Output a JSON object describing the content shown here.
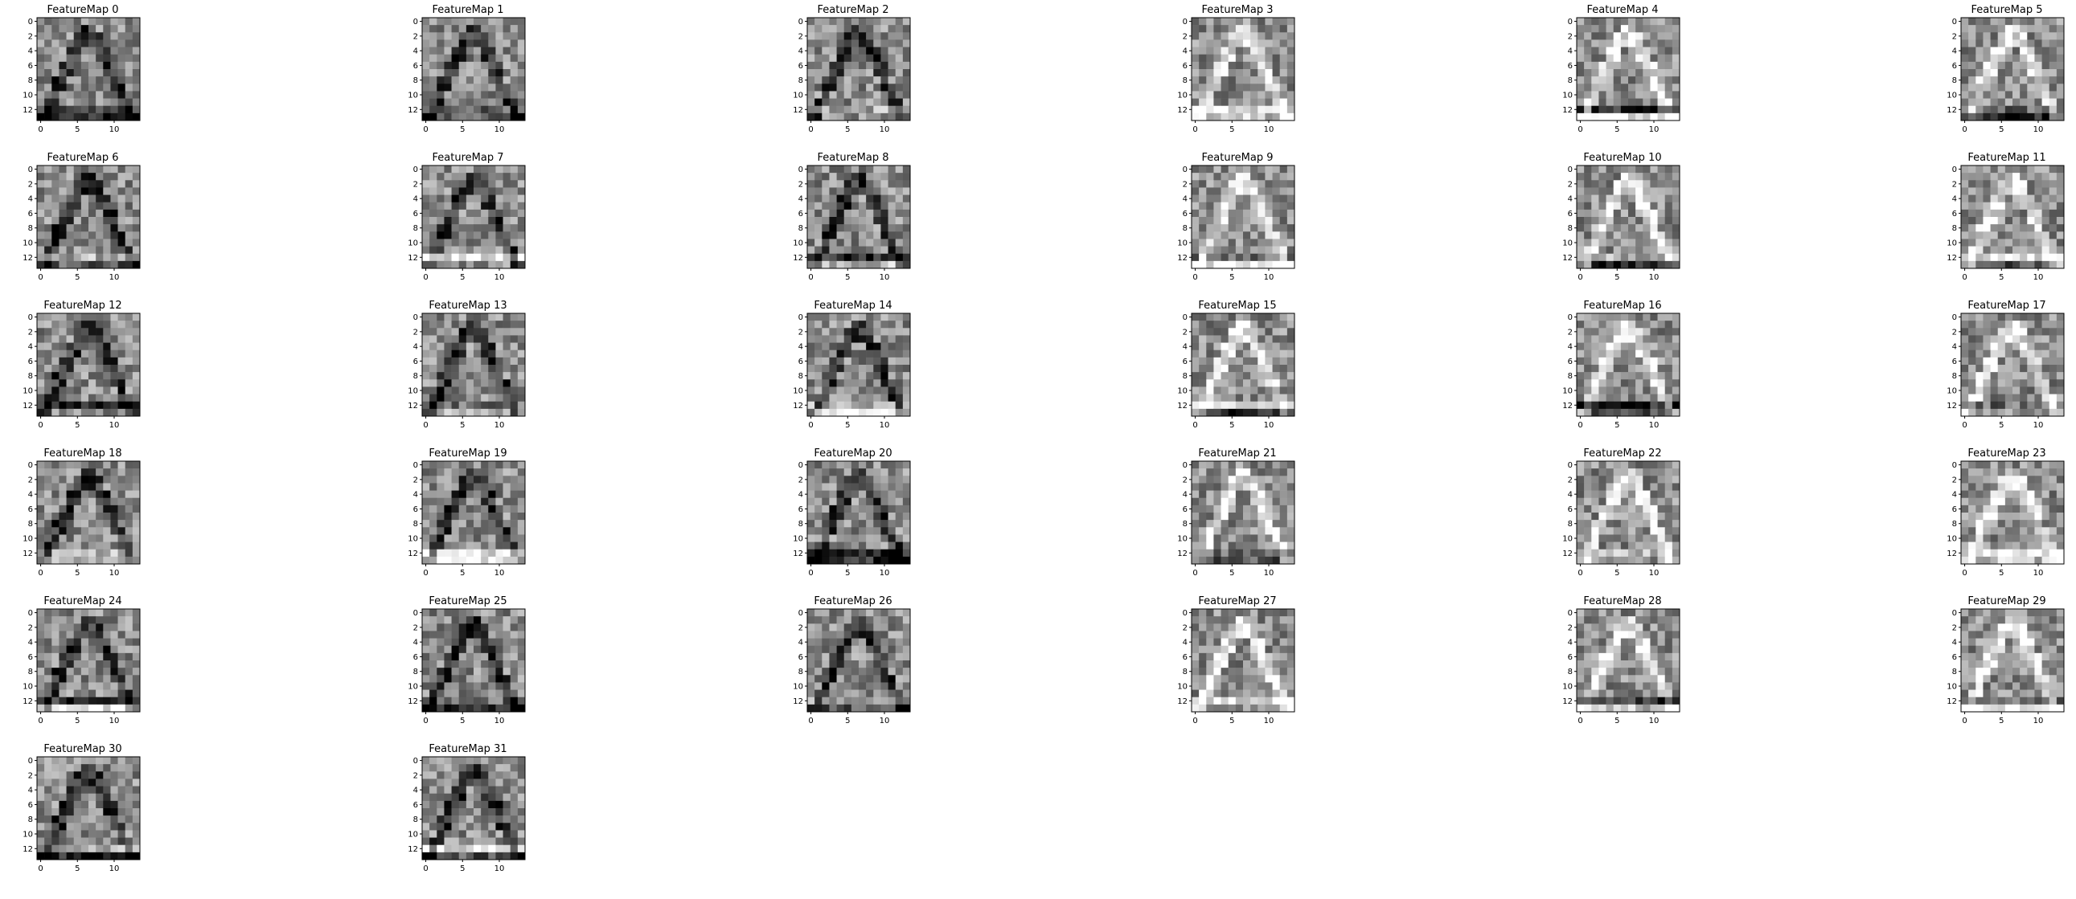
{
  "figure": {
    "background": "#ffffff"
  },
  "chart_data": [
    {
      "type": "heatmap",
      "title": "FeatureMap 0",
      "colormap": "gray",
      "grid_size": 14,
      "xticks": [
        "0",
        "5",
        "10"
      ],
      "yticks": [
        "0",
        "2",
        "4",
        "6",
        "8",
        "10",
        "12"
      ],
      "xlim": [
        0,
        13
      ],
      "ylim": [
        13,
        0
      ]
    },
    {
      "type": "heatmap",
      "title": "FeatureMap 1",
      "colormap": "gray",
      "grid_size": 14,
      "xticks": [
        "0",
        "5",
        "10"
      ],
      "yticks": [
        "0",
        "2",
        "4",
        "6",
        "8",
        "10",
        "12"
      ],
      "xlim": [
        0,
        13
      ],
      "ylim": [
        13,
        0
      ]
    },
    {
      "type": "heatmap",
      "title": "FeatureMap 2",
      "colormap": "gray",
      "grid_size": 14,
      "xticks": [
        "0",
        "5",
        "10"
      ],
      "yticks": [
        "0",
        "2",
        "4",
        "6",
        "8",
        "10",
        "12"
      ],
      "xlim": [
        0,
        13
      ],
      "ylim": [
        13,
        0
      ]
    },
    {
      "type": "heatmap",
      "title": "FeatureMap 3",
      "colormap": "gray",
      "grid_size": 14,
      "xticks": [
        "0",
        "5",
        "10"
      ],
      "yticks": [
        "0",
        "2",
        "4",
        "6",
        "8",
        "10",
        "12"
      ],
      "xlim": [
        0,
        13
      ],
      "ylim": [
        13,
        0
      ]
    },
    {
      "type": "heatmap",
      "title": "FeatureMap 4",
      "colormap": "gray",
      "grid_size": 14,
      "xticks": [
        "0",
        "5",
        "10"
      ],
      "yticks": [
        "0",
        "2",
        "4",
        "6",
        "8",
        "10",
        "12"
      ],
      "xlim": [
        0,
        13
      ],
      "ylim": [
        13,
        0
      ]
    },
    {
      "type": "heatmap",
      "title": "FeatureMap 5",
      "colormap": "gray",
      "grid_size": 14,
      "xticks": [
        "0",
        "5",
        "10"
      ],
      "yticks": [
        "0",
        "2",
        "4",
        "6",
        "8",
        "10",
        "12"
      ],
      "xlim": [
        0,
        13
      ],
      "ylim": [
        13,
        0
      ]
    },
    {
      "type": "heatmap",
      "title": "FeatureMap 6",
      "colormap": "gray",
      "grid_size": 14,
      "xticks": [
        "0",
        "5",
        "10"
      ],
      "yticks": [
        "0",
        "2",
        "4",
        "6",
        "8",
        "10",
        "12"
      ],
      "xlim": [
        0,
        13
      ],
      "ylim": [
        13,
        0
      ]
    },
    {
      "type": "heatmap",
      "title": "FeatureMap 7",
      "colormap": "gray",
      "grid_size": 14,
      "xticks": [
        "0",
        "5",
        "10"
      ],
      "yticks": [
        "0",
        "2",
        "4",
        "6",
        "8",
        "10",
        "12"
      ],
      "xlim": [
        0,
        13
      ],
      "ylim": [
        13,
        0
      ]
    },
    {
      "type": "heatmap",
      "title": "FeatureMap 8",
      "colormap": "gray",
      "grid_size": 14,
      "xticks": [
        "0",
        "5",
        "10"
      ],
      "yticks": [
        "0",
        "2",
        "4",
        "6",
        "8",
        "10",
        "12"
      ],
      "xlim": [
        0,
        13
      ],
      "ylim": [
        13,
        0
      ]
    },
    {
      "type": "heatmap",
      "title": "FeatureMap 9",
      "colormap": "gray",
      "grid_size": 14,
      "xticks": [
        "0",
        "5",
        "10"
      ],
      "yticks": [
        "0",
        "2",
        "4",
        "6",
        "8",
        "10",
        "12"
      ],
      "xlim": [
        0,
        13
      ],
      "ylim": [
        13,
        0
      ]
    },
    {
      "type": "heatmap",
      "title": "FeatureMap 10",
      "colormap": "gray",
      "grid_size": 14,
      "xticks": [
        "0",
        "5",
        "10"
      ],
      "yticks": [
        "0",
        "2",
        "4",
        "6",
        "8",
        "10",
        "12"
      ],
      "xlim": [
        0,
        13
      ],
      "ylim": [
        13,
        0
      ]
    },
    {
      "type": "heatmap",
      "title": "FeatureMap 11",
      "colormap": "gray",
      "grid_size": 14,
      "xticks": [
        "0",
        "5",
        "10"
      ],
      "yticks": [
        "0",
        "2",
        "4",
        "6",
        "8",
        "10",
        "12"
      ],
      "xlim": [
        0,
        13
      ],
      "ylim": [
        13,
        0
      ]
    },
    {
      "type": "heatmap",
      "title": "FeatureMap 12",
      "colormap": "gray",
      "grid_size": 14,
      "xticks": [
        "0",
        "5",
        "10"
      ],
      "yticks": [
        "0",
        "2",
        "4",
        "6",
        "8",
        "10",
        "12"
      ],
      "xlim": [
        0,
        13
      ],
      "ylim": [
        13,
        0
      ]
    },
    {
      "type": "heatmap",
      "title": "FeatureMap 13",
      "colormap": "gray",
      "grid_size": 14,
      "xticks": [
        "0",
        "5",
        "10"
      ],
      "yticks": [
        "0",
        "2",
        "4",
        "6",
        "8",
        "10",
        "12"
      ],
      "xlim": [
        0,
        13
      ],
      "ylim": [
        13,
        0
      ]
    },
    {
      "type": "heatmap",
      "title": "FeatureMap 14",
      "colormap": "gray",
      "grid_size": 14,
      "xticks": [
        "0",
        "5",
        "10"
      ],
      "yticks": [
        "0",
        "2",
        "4",
        "6",
        "8",
        "10",
        "12"
      ],
      "xlim": [
        0,
        13
      ],
      "ylim": [
        13,
        0
      ]
    },
    {
      "type": "heatmap",
      "title": "FeatureMap 15",
      "colormap": "gray",
      "grid_size": 14,
      "xticks": [
        "0",
        "5",
        "10"
      ],
      "yticks": [
        "0",
        "2",
        "4",
        "6",
        "8",
        "10",
        "12"
      ],
      "xlim": [
        0,
        13
      ],
      "ylim": [
        13,
        0
      ]
    },
    {
      "type": "heatmap",
      "title": "FeatureMap 16",
      "colormap": "gray",
      "grid_size": 14,
      "xticks": [
        "0",
        "5",
        "10"
      ],
      "yticks": [
        "0",
        "2",
        "4",
        "6",
        "8",
        "10",
        "12"
      ],
      "xlim": [
        0,
        13
      ],
      "ylim": [
        13,
        0
      ]
    },
    {
      "type": "heatmap",
      "title": "FeatureMap 17",
      "colormap": "gray",
      "grid_size": 14,
      "xticks": [
        "0",
        "5",
        "10"
      ],
      "yticks": [
        "0",
        "2",
        "4",
        "6",
        "8",
        "10",
        "12"
      ],
      "xlim": [
        0,
        13
      ],
      "ylim": [
        13,
        0
      ]
    },
    {
      "type": "heatmap",
      "title": "FeatureMap 18",
      "colormap": "gray",
      "grid_size": 14,
      "xticks": [
        "0",
        "5",
        "10"
      ],
      "yticks": [
        "0",
        "2",
        "4",
        "6",
        "8",
        "10",
        "12"
      ],
      "xlim": [
        0,
        13
      ],
      "ylim": [
        13,
        0
      ]
    },
    {
      "type": "heatmap",
      "title": "FeatureMap 19",
      "colormap": "gray",
      "grid_size": 14,
      "xticks": [
        "0",
        "5",
        "10"
      ],
      "yticks": [
        "0",
        "2",
        "4",
        "6",
        "8",
        "10",
        "12"
      ],
      "xlim": [
        0,
        13
      ],
      "ylim": [
        13,
        0
      ]
    },
    {
      "type": "heatmap",
      "title": "FeatureMap 20",
      "colormap": "gray",
      "grid_size": 14,
      "xticks": [
        "0",
        "5",
        "10"
      ],
      "yticks": [
        "0",
        "2",
        "4",
        "6",
        "8",
        "10",
        "12"
      ],
      "xlim": [
        0,
        13
      ],
      "ylim": [
        13,
        0
      ]
    },
    {
      "type": "heatmap",
      "title": "FeatureMap 21",
      "colormap": "gray",
      "grid_size": 14,
      "xticks": [
        "0",
        "5",
        "10"
      ],
      "yticks": [
        "0",
        "2",
        "4",
        "6",
        "8",
        "10",
        "12"
      ],
      "xlim": [
        0,
        13
      ],
      "ylim": [
        13,
        0
      ]
    },
    {
      "type": "heatmap",
      "title": "FeatureMap 22",
      "colormap": "gray",
      "grid_size": 14,
      "xticks": [
        "0",
        "5",
        "10"
      ],
      "yticks": [
        "0",
        "2",
        "4",
        "6",
        "8",
        "10",
        "12"
      ],
      "xlim": [
        0,
        13
      ],
      "ylim": [
        13,
        0
      ]
    },
    {
      "type": "heatmap",
      "title": "FeatureMap 23",
      "colormap": "gray",
      "grid_size": 14,
      "xticks": [
        "0",
        "5",
        "10"
      ],
      "yticks": [
        "0",
        "2",
        "4",
        "6",
        "8",
        "10",
        "12"
      ],
      "xlim": [
        0,
        13
      ],
      "ylim": [
        13,
        0
      ]
    },
    {
      "type": "heatmap",
      "title": "FeatureMap 24",
      "colormap": "gray",
      "grid_size": 14,
      "xticks": [
        "0",
        "5",
        "10"
      ],
      "yticks": [
        "0",
        "2",
        "4",
        "6",
        "8",
        "10",
        "12"
      ],
      "xlim": [
        0,
        13
      ],
      "ylim": [
        13,
        0
      ]
    },
    {
      "type": "heatmap",
      "title": "FeatureMap 25",
      "colormap": "gray",
      "grid_size": 14,
      "xticks": [
        "0",
        "5",
        "10"
      ],
      "yticks": [
        "0",
        "2",
        "4",
        "6",
        "8",
        "10",
        "12"
      ],
      "xlim": [
        0,
        13
      ],
      "ylim": [
        13,
        0
      ]
    },
    {
      "type": "heatmap",
      "title": "FeatureMap 26",
      "colormap": "gray",
      "grid_size": 14,
      "xticks": [
        "0",
        "5",
        "10"
      ],
      "yticks": [
        "0",
        "2",
        "4",
        "6",
        "8",
        "10",
        "12"
      ],
      "xlim": [
        0,
        13
      ],
      "ylim": [
        13,
        0
      ]
    },
    {
      "type": "heatmap",
      "title": "FeatureMap 27",
      "colormap": "gray",
      "grid_size": 14,
      "xticks": [
        "0",
        "5",
        "10"
      ],
      "yticks": [
        "0",
        "2",
        "4",
        "6",
        "8",
        "10",
        "12"
      ],
      "xlim": [
        0,
        13
      ],
      "ylim": [
        13,
        0
      ]
    },
    {
      "type": "heatmap",
      "title": "FeatureMap 28",
      "colormap": "gray",
      "grid_size": 14,
      "xticks": [
        "0",
        "5",
        "10"
      ],
      "yticks": [
        "0",
        "2",
        "4",
        "6",
        "8",
        "10",
        "12"
      ],
      "xlim": [
        0,
        13
      ],
      "ylim": [
        13,
        0
      ]
    },
    {
      "type": "heatmap",
      "title": "FeatureMap 29",
      "colormap": "gray",
      "grid_size": 14,
      "xticks": [
        "0",
        "5",
        "10"
      ],
      "yticks": [
        "0",
        "2",
        "4",
        "6",
        "8",
        "10",
        "12"
      ],
      "xlim": [
        0,
        13
      ],
      "ylim": [
        13,
        0
      ]
    },
    {
      "type": "heatmap",
      "title": "FeatureMap 30",
      "colormap": "gray",
      "grid_size": 14,
      "xticks": [
        "0",
        "5",
        "10"
      ],
      "yticks": [
        "0",
        "2",
        "4",
        "6",
        "8",
        "10",
        "12"
      ],
      "xlim": [
        0,
        13
      ],
      "ylim": [
        13,
        0
      ]
    },
    {
      "type": "heatmap",
      "title": "FeatureMap 31",
      "colormap": "gray",
      "grid_size": 14,
      "xticks": [
        "0",
        "5",
        "10"
      ],
      "yticks": [
        "0",
        "2",
        "4",
        "6",
        "8",
        "10",
        "12"
      ],
      "xlim": [
        0,
        13
      ],
      "ylim": [
        13,
        0
      ]
    }
  ]
}
